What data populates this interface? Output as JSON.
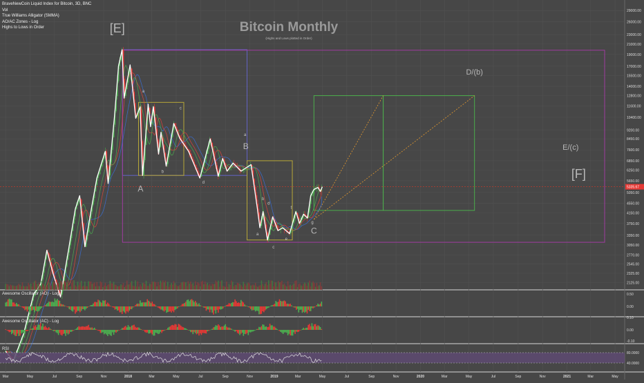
{
  "header": {
    "symbol_line": "BraveNewCoin Liquid Index for Bitcoin, 3D, BNC",
    "indicators": [
      "Vol",
      "True Williams Alligator (SMMA)",
      "AO/AC Zones - Log",
      "Highs to Lows in Order"
    ]
  },
  "chart_data": {
    "type": "line",
    "title": "Bitcoin Monthly",
    "subtitle": "(Highs and Lows plotted in Order)",
    "y_axis": {
      "scale": "log",
      "ticks": [
        32000,
        29000,
        26000,
        23000,
        21000,
        19000,
        17000,
        15500,
        14000,
        12800,
        11600,
        10400,
        9200,
        8450,
        7600,
        6850,
        6250,
        5650,
        5050,
        4550,
        4150,
        3750,
        3350,
        3050,
        2770,
        2545,
        2325,
        2125,
        1900
      ],
      "tick_labels": [
        "32000.00",
        "29000.00",
        "26000.00",
        "23000.00",
        "21000.00",
        "19000.00",
        "17000.00",
        "15500.00",
        "14000.00",
        "12800.00",
        "11600.00",
        "10400.00",
        "9200.00",
        "8450.00",
        "7600.00",
        "6850.00",
        "6250.00",
        "5650.00",
        "5050.00",
        "4550.00",
        "4150.00",
        "3750.00",
        "3350.00",
        "3050.00",
        "2770.00",
        "2545.00",
        "2325.00",
        "2125.00",
        "1900.00"
      ],
      "last_price": 5335.67,
      "last_price_label": "5335.67",
      "reference_line": 5335.67
    },
    "x_axis": {
      "labels": [
        "Mar",
        "May",
        "Jul",
        "Sep",
        "Nov",
        "2018",
        "Mar",
        "May",
        "Jul",
        "Sep",
        "Nov",
        "2019",
        "Mar",
        "May",
        "Jul",
        "Sep",
        "Nov",
        "2020",
        "Mar",
        "May",
        "Jul",
        "Sep",
        "Nov",
        "2021",
        "Mar",
        "May"
      ],
      "start": "2017-02-15",
      "end": "2021-05-25"
    },
    "price_path": [
      [
        "2017-03-01",
        1100
      ],
      [
        "2017-03-20",
        1000
      ],
      [
        "2017-04-15",
        1300
      ],
      [
        "2017-05-10",
        1900
      ],
      [
        "2017-05-28",
        2100
      ],
      [
        "2017-06-12",
        2900
      ],
      [
        "2017-06-28",
        2300
      ],
      [
        "2017-07-16",
        1850
      ],
      [
        "2017-08-05",
        2900
      ],
      [
        "2017-08-22",
        4300
      ],
      [
        "2017-09-02",
        4900
      ],
      [
        "2017-09-15",
        3000
      ],
      [
        "2017-10-01",
        4300
      ],
      [
        "2017-10-15",
        5800
      ],
      [
        "2017-11-05",
        7500
      ],
      [
        "2017-11-12",
        5500
      ],
      [
        "2017-11-28",
        10500
      ],
      [
        "2017-12-08",
        17000
      ],
      [
        "2017-12-17",
        19900
      ],
      [
        "2017-12-22",
        12500
      ],
      [
        "2018-01-06",
        17200
      ],
      [
        "2018-01-20",
        10300
      ],
      [
        "2018-01-31",
        11500
      ],
      [
        "2018-02-06",
        5950
      ],
      [
        "2018-02-20",
        11800
      ],
      [
        "2018-02-26",
        9500
      ],
      [
        "2018-03-05",
        11500
      ],
      [
        "2018-03-18",
        7300
      ],
      [
        "2018-03-24",
        9000
      ],
      [
        "2018-04-06",
        6500
      ],
      [
        "2018-04-25",
        9800
      ],
      [
        "2018-05-10",
        8500
      ],
      [
        "2018-06-01",
        7500
      ],
      [
        "2018-06-29",
        5800
      ],
      [
        "2018-07-25",
        8450
      ],
      [
        "2018-08-14",
        5900
      ],
      [
        "2018-08-25",
        7000
      ],
      [
        "2018-09-05",
        6200
      ],
      [
        "2018-09-20",
        6700
      ],
      [
        "2018-10-10",
        6200
      ],
      [
        "2018-11-04",
        6600
      ],
      [
        "2018-11-20",
        4300
      ],
      [
        "2018-11-26",
        3600
      ],
      [
        "2018-12-04",
        4200
      ],
      [
        "2018-12-15",
        3200
      ],
      [
        "2018-12-28",
        4000
      ],
      [
        "2019-01-10",
        3500
      ],
      [
        "2019-01-22",
        3600
      ],
      [
        "2019-02-08",
        3400
      ],
      [
        "2019-02-24",
        4200
      ],
      [
        "2019-03-05",
        3750
      ],
      [
        "2019-03-15",
        4100
      ],
      [
        "2019-03-25",
        3950
      ],
      [
        "2019-04-02",
        4900
      ],
      [
        "2019-04-10",
        5200
      ],
      [
        "2019-04-20",
        5300
      ],
      [
        "2019-04-26",
        5100
      ],
      [
        "2019-05-01",
        5336
      ]
    ],
    "series": [
      {
        "name": "Jaw",
        "color": "#3b6fd6"
      },
      {
        "name": "Teeth",
        "color": "#e0443c"
      },
      {
        "name": "Lips",
        "color": "#4caf50"
      }
    ],
    "wave_labels": [
      {
        "text": "[E]",
        "date": "2017-12-05",
        "price": 23500
      },
      {
        "text": "a",
        "date": "2018-02-08",
        "price": 13200
      },
      {
        "text": "c",
        "date": "2018-05-12",
        "price": 11200
      },
      {
        "text": "A",
        "date": "2018-02-01",
        "price": 5100
      },
      {
        "text": "b",
        "date": "2018-03-28",
        "price": 6100
      },
      {
        "text": "d",
        "date": "2018-07-08",
        "price": 5500
      },
      {
        "text": "B",
        "date": "2018-10-22",
        "price": 7650
      },
      {
        "text": "a",
        "date": "2018-10-20",
        "price": 8700
      },
      {
        "text": "b",
        "date": "2018-12-04",
        "price": 4700
      },
      {
        "text": "d",
        "date": "2018-12-18",
        "price": 4500
      },
      {
        "text": "f",
        "date": "2019-02-12",
        "price": 4300
      },
      {
        "text": "a",
        "date": "2018-11-20",
        "price": 3350
      },
      {
        "text": "c",
        "date": "2018-12-30",
        "price": 2950
      },
      {
        "text": "e",
        "date": "2019-01-31",
        "price": 3200
      },
      {
        "text": "g",
        "date": "2019-04-06",
        "price": 3750
      },
      {
        "text": "C",
        "date": "2019-04-10",
        "price": 3400
      },
      {
        "text": "D/(b)",
        "date": "2020-05-15",
        "price": 15700
      },
      {
        "text": "E/(c)",
        "date": "2021-01-10",
        "price": 7600
      },
      {
        "text": "[F]",
        "date": "2021-01-30",
        "price": 5800
      }
    ],
    "boxes": [
      {
        "from": "2017-12-18",
        "to": "2018-10-25",
        "low": 5950,
        "high": 19900,
        "color": "#6464c8"
      },
      {
        "from": "2018-01-27",
        "to": "2018-05-20",
        "low": 5950,
        "high": 12000,
        "color": "#b8a838"
      },
      {
        "from": "2018-10-25",
        "to": "2019-02-15",
        "low": 3200,
        "high": 6850,
        "color": "#b8a838"
      },
      {
        "from": "2017-12-18",
        "to": "2021-04-05",
        "low": 3130,
        "high": 19800,
        "color": "#a03ca0"
      },
      {
        "from": "2019-04-10",
        "to": "2019-09-30",
        "low": 4250,
        "high": 12800,
        "color": "#4cae4c"
      },
      {
        "from": "2019-09-30",
        "to": "2020-05-15",
        "low": 4250,
        "high": 12800,
        "color": "#4cae4c"
      }
    ],
    "projections": [
      {
        "from_date": "2019-04-10",
        "from_price": 3900,
        "to_date": "2019-09-30",
        "to_price": 12800
      },
      {
        "from_date": "2019-04-10",
        "from_price": 3900,
        "to_date": "2020-05-15",
        "to_price": 12800
      }
    ],
    "oscillators": [
      {
        "name": "Awesome Oscillator (AO) - Log",
        "ticks": [
          "0.50",
          "0.00"
        ]
      },
      {
        "name": "Awesome Oscillator (AC) - Log",
        "ticks": [
          "0.10",
          "0.00",
          "-0.10"
        ]
      },
      {
        "name": "RSI",
        "ticks": [
          "80.0000",
          "40.0000"
        ]
      }
    ]
  }
}
